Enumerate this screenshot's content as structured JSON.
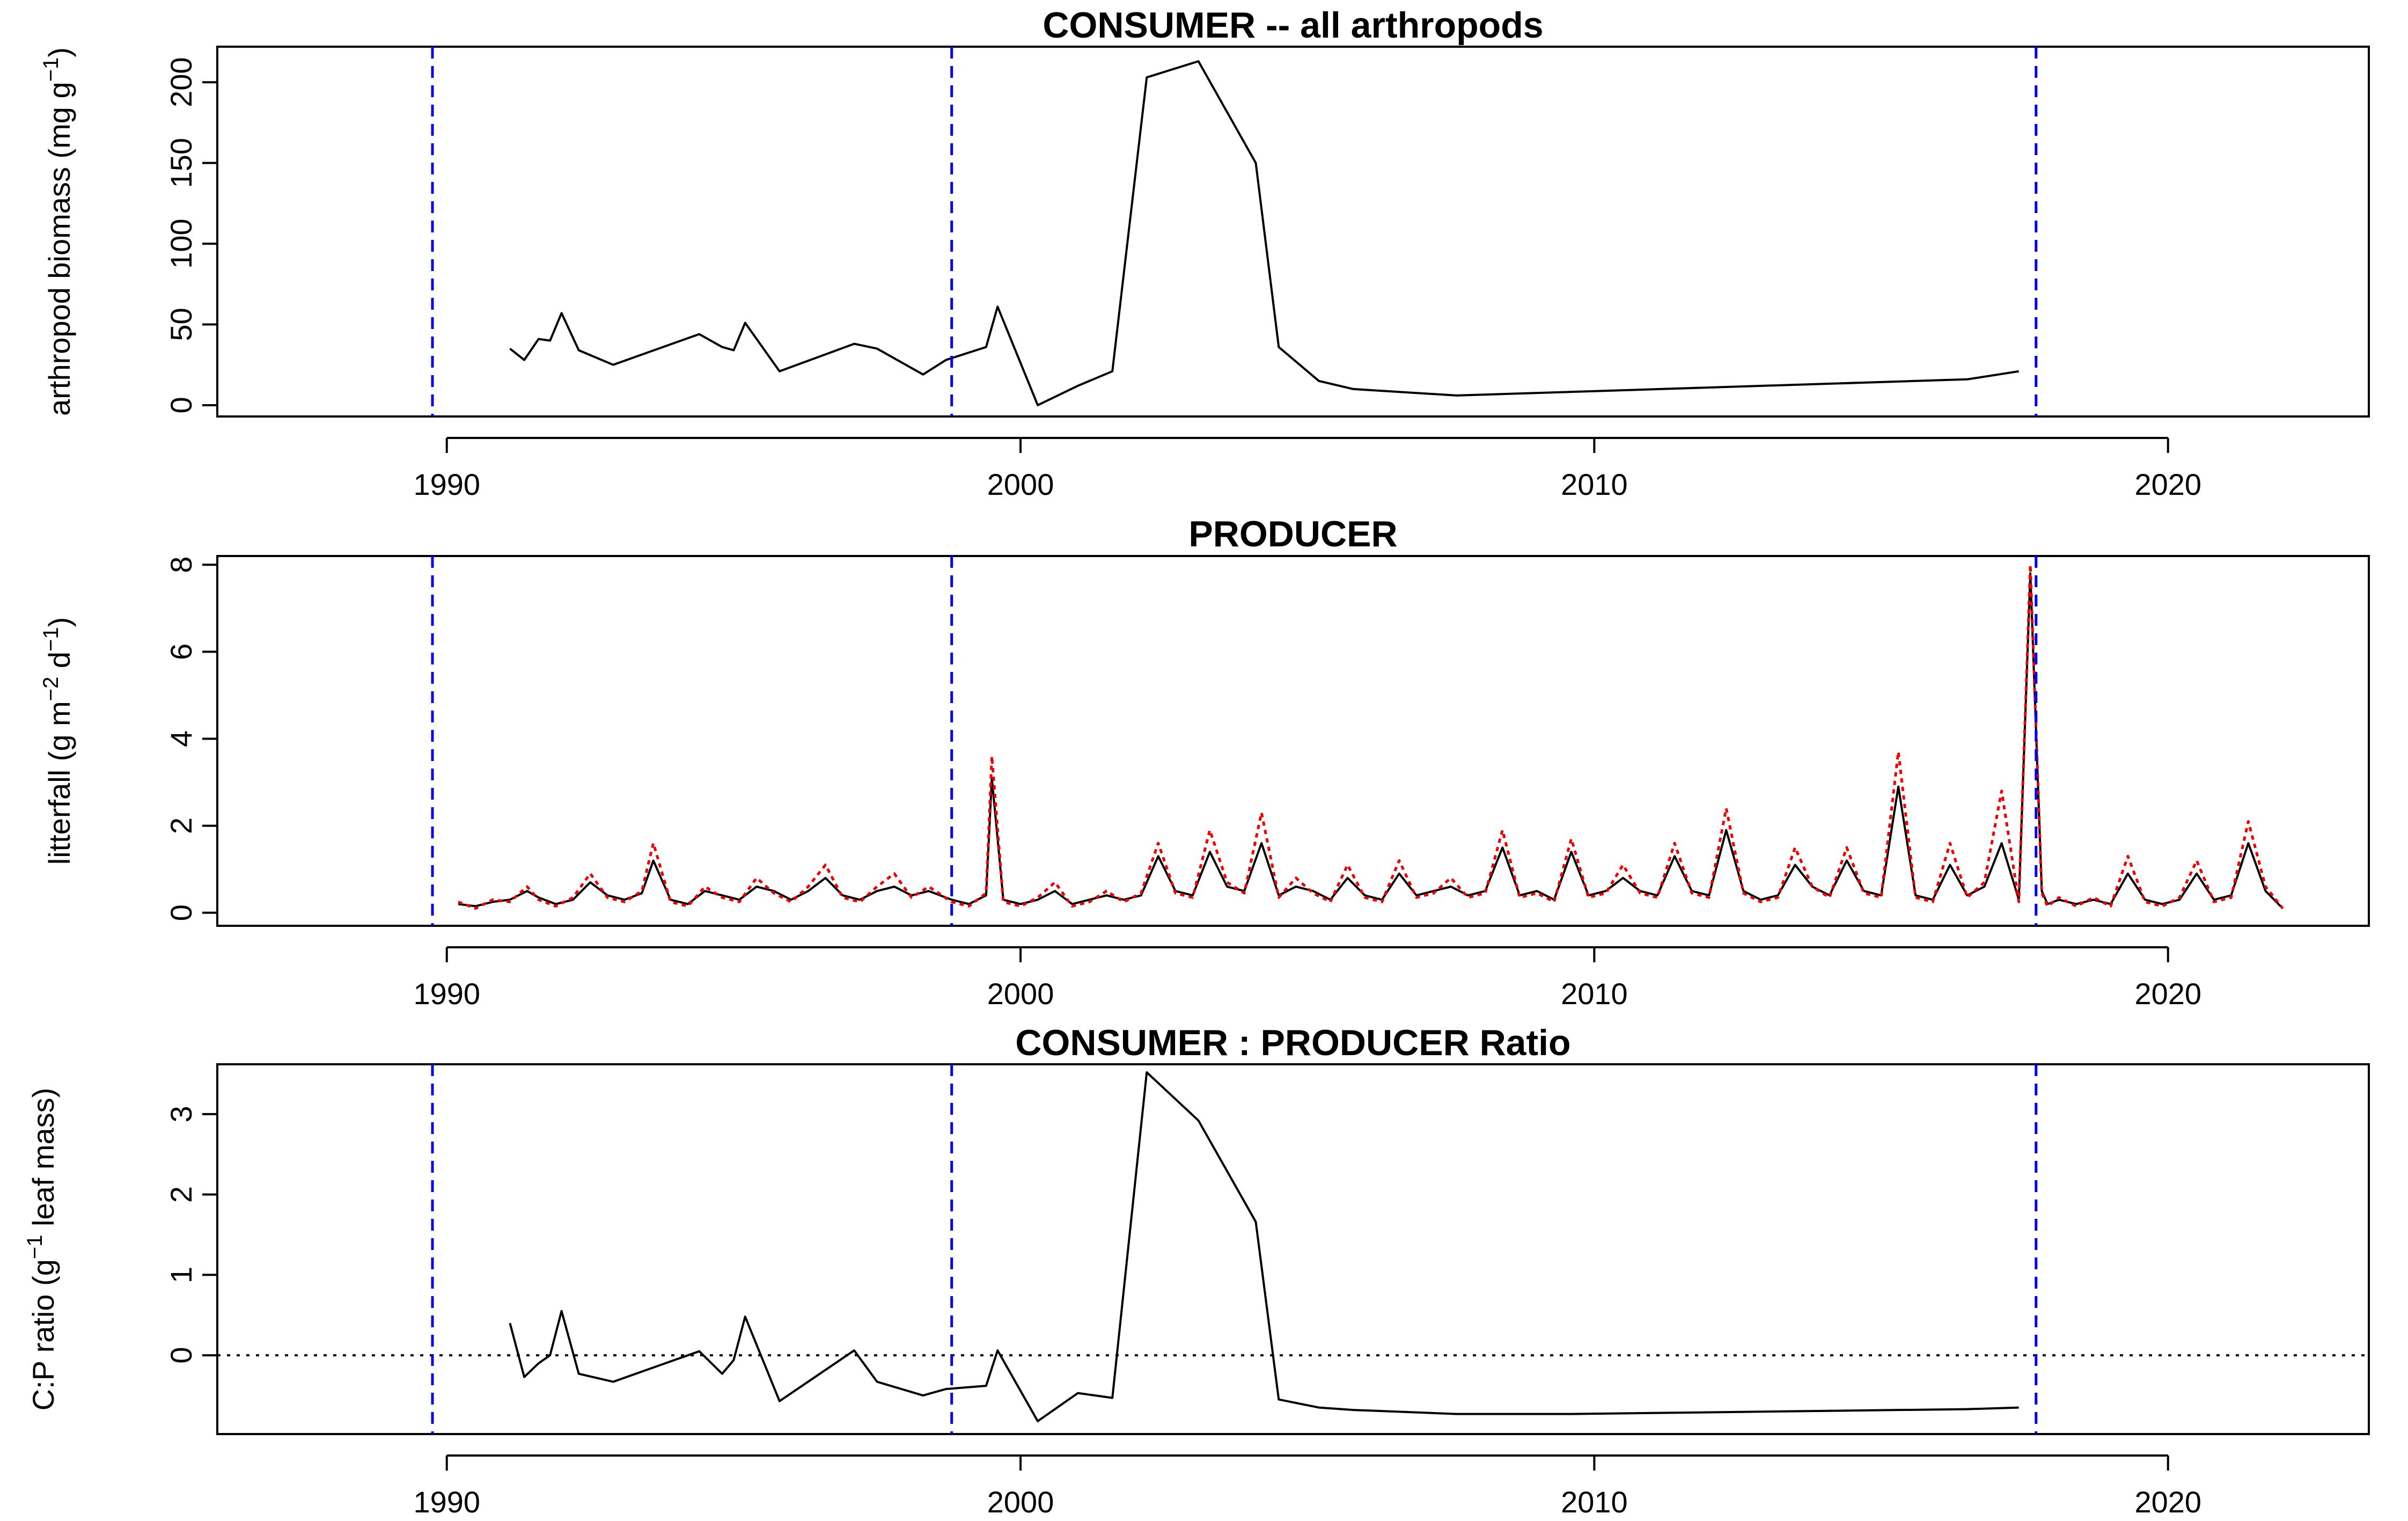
{
  "chart_data": [
    {
      "type": "line",
      "title": "CONSUMER -- all arthropods",
      "xlabel": "",
      "ylabel": "arthropod biomass (mg g⁻¹)",
      "xlim": [
        1986,
        2023.5
      ],
      "ylim": [
        -7,
        222
      ],
      "xticks": [
        1990,
        2000,
        2010,
        2020
      ],
      "yticks": [
        0,
        50,
        100,
        150,
        200
      ],
      "grid": false,
      "vlines": [
        1989.75,
        1998.8,
        2017.7
      ],
      "vline_color": "#0000ee",
      "series": [
        {
          "color": "#000000",
          "x": [
            1991.1,
            1991.35,
            1991.6,
            1991.8,
            1992.0,
            1992.3,
            1992.9,
            1994.4,
            1994.8,
            1995.0,
            1995.2,
            1995.8,
            1997.1,
            1997.5,
            1998.3,
            1998.7,
            1999.4,
            1999.6,
            2000.3,
            2001.0,
            2001.6,
            2002.2,
            2003.1,
            2004.1,
            2004.5,
            2005.2,
            2005.8,
            2007.6,
            2016.5,
            2017.4
          ],
          "y": [
            35,
            28,
            41,
            40,
            57,
            34,
            25,
            44,
            36,
            34,
            51,
            21,
            38,
            35,
            19,
            28,
            36,
            61,
            0,
            12,
            21,
            203,
            213,
            150,
            36,
            15,
            10,
            6,
            16,
            21
          ]
        }
      ]
    },
    {
      "type": "line",
      "title": "PRODUCER",
      "xlabel": "",
      "ylabel": "litterfall (g m⁻² d⁻¹)",
      "xlim": [
        1986,
        2023.5
      ],
      "ylim": [
        -0.3,
        8.2
      ],
      "xticks": [
        1990,
        2000,
        2010,
        2020
      ],
      "yticks": [
        0,
        2,
        4,
        6,
        8
      ],
      "grid": false,
      "vlines": [
        1989.75,
        1998.8,
        2017.7
      ],
      "vline_color": "#0000ee",
      "series": [
        {
          "color": "#000000",
          "x": [
            1990.2,
            1990.5,
            1990.8,
            1991.1,
            1991.4,
            1991.6,
            1991.9,
            1992.2,
            1992.5,
            1992.8,
            1993.1,
            1993.4,
            1993.6,
            1993.9,
            1994.2,
            1994.5,
            1994.8,
            1995.1,
            1995.4,
            1995.7,
            1996.0,
            1996.3,
            1996.6,
            1996.9,
            1997.2,
            1997.5,
            1997.8,
            1998.1,
            1998.4,
            1998.8,
            1999.1,
            1999.4,
            1999.5,
            1999.7,
            2000.0,
            2000.3,
            2000.6,
            2000.9,
            2001.2,
            2001.5,
            2001.8,
            2002.1,
            2002.4,
            2002.7,
            2003.0,
            2003.3,
            2003.6,
            2003.9,
            2004.2,
            2004.5,
            2004.8,
            2005.1,
            2005.4,
            2005.7,
            2006.0,
            2006.3,
            2006.6,
            2006.9,
            2007.2,
            2007.5,
            2007.8,
            2008.1,
            2008.4,
            2008.7,
            2009.0,
            2009.3,
            2009.6,
            2009.9,
            2010.2,
            2010.5,
            2010.8,
            2011.1,
            2011.4,
            2011.7,
            2012.0,
            2012.3,
            2012.6,
            2012.9,
            2013.2,
            2013.5,
            2013.8,
            2014.1,
            2014.4,
            2014.7,
            2015.0,
            2015.3,
            2015.6,
            2015.9,
            2016.2,
            2016.5,
            2016.8,
            2017.1,
            2017.4,
            2017.6,
            2017.8,
            2017.9,
            2018.1,
            2018.4,
            2018.7,
            2019.0,
            2019.3,
            2019.6,
            2019.9,
            2020.2,
            2020.5,
            2020.8,
            2021.1,
            2021.4,
            2021.7,
            2022.0
          ],
          "y": [
            0.2,
            0.15,
            0.25,
            0.3,
            0.5,
            0.35,
            0.2,
            0.3,
            0.7,
            0.4,
            0.3,
            0.45,
            1.2,
            0.3,
            0.2,
            0.5,
            0.4,
            0.3,
            0.6,
            0.5,
            0.3,
            0.5,
            0.8,
            0.4,
            0.3,
            0.5,
            0.6,
            0.4,
            0.5,
            0.3,
            0.2,
            0.4,
            3.1,
            0.3,
            0.2,
            0.3,
            0.5,
            0.2,
            0.3,
            0.4,
            0.3,
            0.4,
            1.3,
            0.5,
            0.4,
            1.4,
            0.6,
            0.5,
            1.6,
            0.4,
            0.6,
            0.5,
            0.3,
            0.8,
            0.4,
            0.3,
            0.9,
            0.4,
            0.5,
            0.6,
            0.4,
            0.5,
            1.5,
            0.4,
            0.5,
            0.3,
            1.4,
            0.4,
            0.5,
            0.8,
            0.5,
            0.4,
            1.3,
            0.5,
            0.4,
            1.9,
            0.5,
            0.3,
            0.4,
            1.1,
            0.6,
            0.4,
            1.2,
            0.5,
            0.4,
            2.9,
            0.4,
            0.3,
            1.1,
            0.4,
            0.6,
            1.6,
            0.3,
            7.8,
            0.5,
            0.2,
            0.3,
            0.2,
            0.3,
            0.2,
            0.9,
            0.3,
            0.2,
            0.3,
            0.9,
            0.3,
            0.4,
            1.6,
            0.5,
            0.1
          ]
        },
        {
          "color": "#ee0000",
          "x": [
            1990.2,
            1990.5,
            1990.8,
            1991.1,
            1991.4,
            1991.6,
            1991.9,
            1992.2,
            1992.5,
            1992.8,
            1993.1,
            1993.4,
            1993.6,
            1993.9,
            1994.2,
            1994.5,
            1994.8,
            1995.1,
            1995.4,
            1995.7,
            1996.0,
            1996.3,
            1996.6,
            1996.9,
            1997.2,
            1997.5,
            1997.8,
            1998.1,
            1998.4,
            1998.8,
            1999.1,
            1999.4,
            1999.5,
            1999.7,
            2000.0,
            2000.3,
            2000.6,
            2000.9,
            2001.2,
            2001.5,
            2001.8,
            2002.1,
            2002.4,
            2002.7,
            2003.0,
            2003.3,
            2003.6,
            2003.9,
            2004.2,
            2004.5,
            2004.8,
            2005.1,
            2005.4,
            2005.7,
            2006.0,
            2006.3,
            2006.6,
            2006.9,
            2007.2,
            2007.5,
            2007.8,
            2008.1,
            2008.4,
            2008.7,
            2009.0,
            2009.3,
            2009.6,
            2009.9,
            2010.2,
            2010.5,
            2010.8,
            2011.1,
            2011.4,
            2011.7,
            2012.0,
            2012.3,
            2012.6,
            2012.9,
            2013.2,
            2013.5,
            2013.8,
            2014.1,
            2014.4,
            2014.7,
            2015.0,
            2015.3,
            2015.6,
            2015.9,
            2016.2,
            2016.5,
            2016.8,
            2017.1,
            2017.4,
            2017.6,
            2017.8,
            2017.9,
            2018.1,
            2018.4,
            2018.7,
            2019.0,
            2019.3,
            2019.6,
            2019.9,
            2020.2,
            2020.5,
            2020.8,
            2021.1,
            2021.4,
            2021.7,
            2022.0
          ],
          "y": [
            0.25,
            0.1,
            0.3,
            0.25,
            0.6,
            0.3,
            0.15,
            0.35,
            0.9,
            0.35,
            0.25,
            0.5,
            1.6,
            0.25,
            0.15,
            0.6,
            0.35,
            0.25,
            0.8,
            0.45,
            0.25,
            0.6,
            1.1,
            0.35,
            0.25,
            0.6,
            0.9,
            0.35,
            0.6,
            0.25,
            0.15,
            0.45,
            3.6,
            0.25,
            0.15,
            0.35,
            0.7,
            0.15,
            0.25,
            0.5,
            0.25,
            0.45,
            1.6,
            0.45,
            0.35,
            1.9,
            0.7,
            0.45,
            2.3,
            0.35,
            0.8,
            0.45,
            0.25,
            1.1,
            0.35,
            0.25,
            1.2,
            0.35,
            0.45,
            0.8,
            0.35,
            0.45,
            1.9,
            0.35,
            0.45,
            0.25,
            1.7,
            0.35,
            0.45,
            1.1,
            0.45,
            0.35,
            1.6,
            0.45,
            0.35,
            2.4,
            0.45,
            0.25,
            0.35,
            1.5,
            0.6,
            0.35,
            1.5,
            0.45,
            0.35,
            3.7,
            0.35,
            0.25,
            1.6,
            0.35,
            0.7,
            2.8,
            0.25,
            8.0,
            0.45,
            0.15,
            0.35,
            0.15,
            0.35,
            0.15,
            1.3,
            0.25,
            0.15,
            0.35,
            1.2,
            0.25,
            0.35,
            2.1,
            0.6,
            0.1
          ]
        }
      ]
    },
    {
      "type": "line",
      "title": "CONSUMER : PRODUCER Ratio",
      "xlabel": "",
      "ylabel": "C:P ratio (g⁻¹ leaf mass)",
      "xlim": [
        1986,
        2023.5
      ],
      "ylim": [
        -0.98,
        3.62
      ],
      "xticks": [
        1990,
        2000,
        2010,
        2020
      ],
      "yticks": [
        0,
        1,
        2,
        3
      ],
      "grid": false,
      "vlines": [
        1989.75,
        1998.8,
        2017.7
      ],
      "vline_color": "#0000ee",
      "hline": 0,
      "series": [
        {
          "color": "#000000",
          "x": [
            1991.1,
            1991.35,
            1991.6,
            1991.8,
            1992.0,
            1992.3,
            1992.9,
            1994.4,
            1994.8,
            1995.0,
            1995.2,
            1995.8,
            1997.1,
            1997.5,
            1998.3,
            1998.7,
            1999.4,
            1999.6,
            2000.3,
            2001.0,
            2001.6,
            2002.2,
            2003.1,
            2004.1,
            2004.5,
            2005.2,
            2005.8,
            2007.6,
            2009.6,
            2016.5,
            2017.4
          ],
          "y": [
            0.4,
            -0.27,
            -0.1,
            0.0,
            0.55,
            -0.23,
            -0.33,
            0.05,
            -0.23,
            -0.06,
            0.48,
            -0.57,
            0.06,
            -0.33,
            -0.5,
            -0.42,
            -0.38,
            0.06,
            -0.82,
            -0.47,
            -0.53,
            3.52,
            2.92,
            1.66,
            -0.55,
            -0.65,
            -0.68,
            -0.73,
            -0.73,
            -0.67,
            -0.65
          ]
        }
      ]
    }
  ]
}
